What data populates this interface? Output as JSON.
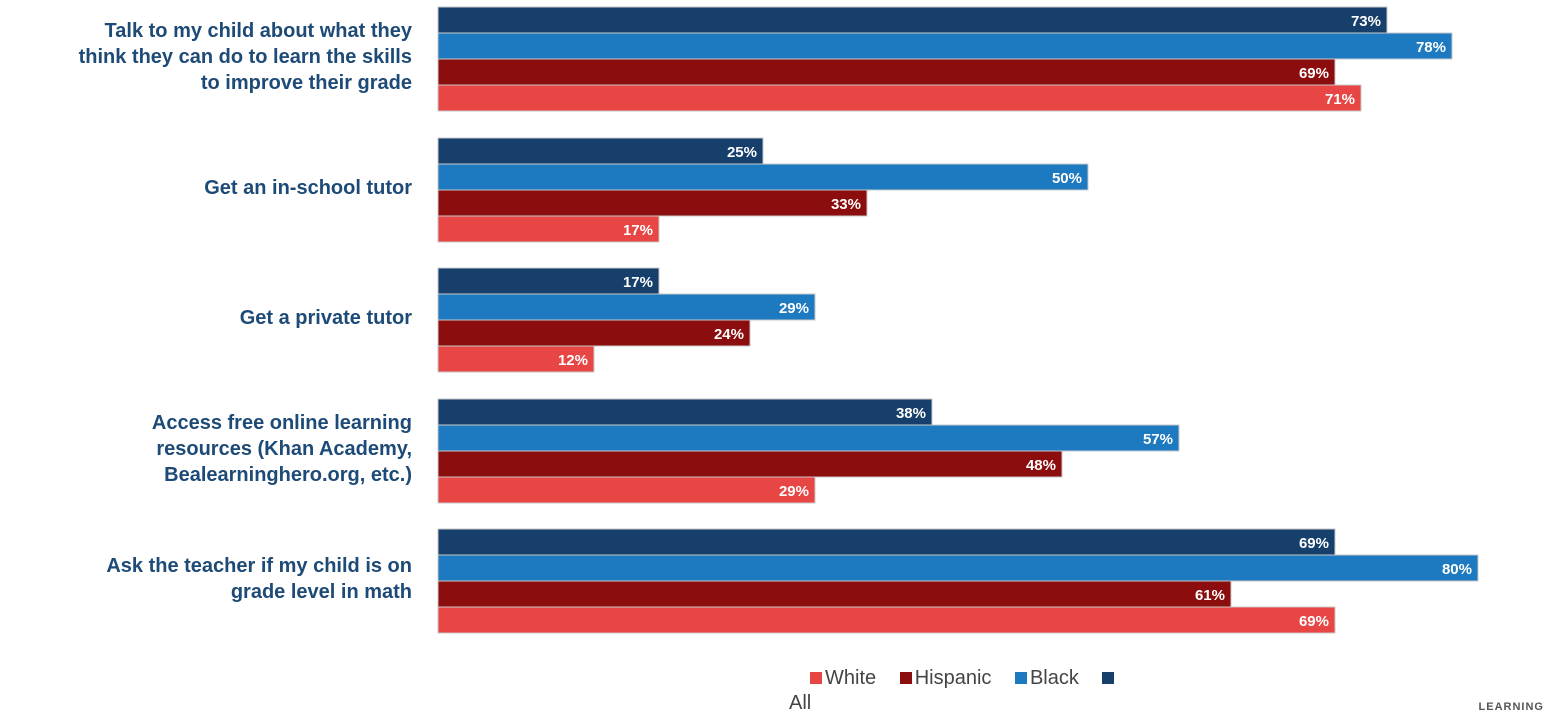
{
  "chart_data": {
    "type": "bar",
    "orientation": "horizontal",
    "categories": [
      "Talk to my child about what they think they can do to learn the skills to improve their grade",
      "Get an in-school tutor",
      "Get a private tutor",
      "Access free online learning resources (Khan Academy, Bealearninghero.org, etc.)",
      "Ask the teacher if my child is on grade level in math"
    ],
    "series": [
      {
        "name": "All",
        "color": "#16406b",
        "values": [
          73,
          25,
          17,
          38,
          69
        ]
      },
      {
        "name": "Black",
        "color": "#1e7ac0",
        "values": [
          78,
          50,
          29,
          57,
          80
        ]
      },
      {
        "name": "Hispanic",
        "color": "#8b0d0d",
        "values": [
          69,
          33,
          24,
          48,
          61
        ]
      },
      {
        "name": "White",
        "color": "#e84545",
        "values": [
          71,
          17,
          12,
          29,
          69
        ]
      }
    ],
    "value_suffix": "%",
    "legend_order": [
      "White",
      "Hispanic",
      "Black",
      "All"
    ],
    "legend_placement": "bottom"
  },
  "labels": {
    "cat0_lines": [
      "Talk to my child about what they",
      "think they can do to learn the skills",
      "to improve their grade"
    ],
    "cat1_lines": [
      "Get an in-school tutor"
    ],
    "cat2_lines": [
      "Get a private tutor"
    ],
    "cat3_lines": [
      "Access free online learning",
      "resources (Khan Academy,",
      "Bealearninghero.org, etc.)"
    ],
    "cat4_lines": [
      "Ask the teacher if my child is on",
      "grade level in math"
    ]
  },
  "footer": "LEARNING"
}
